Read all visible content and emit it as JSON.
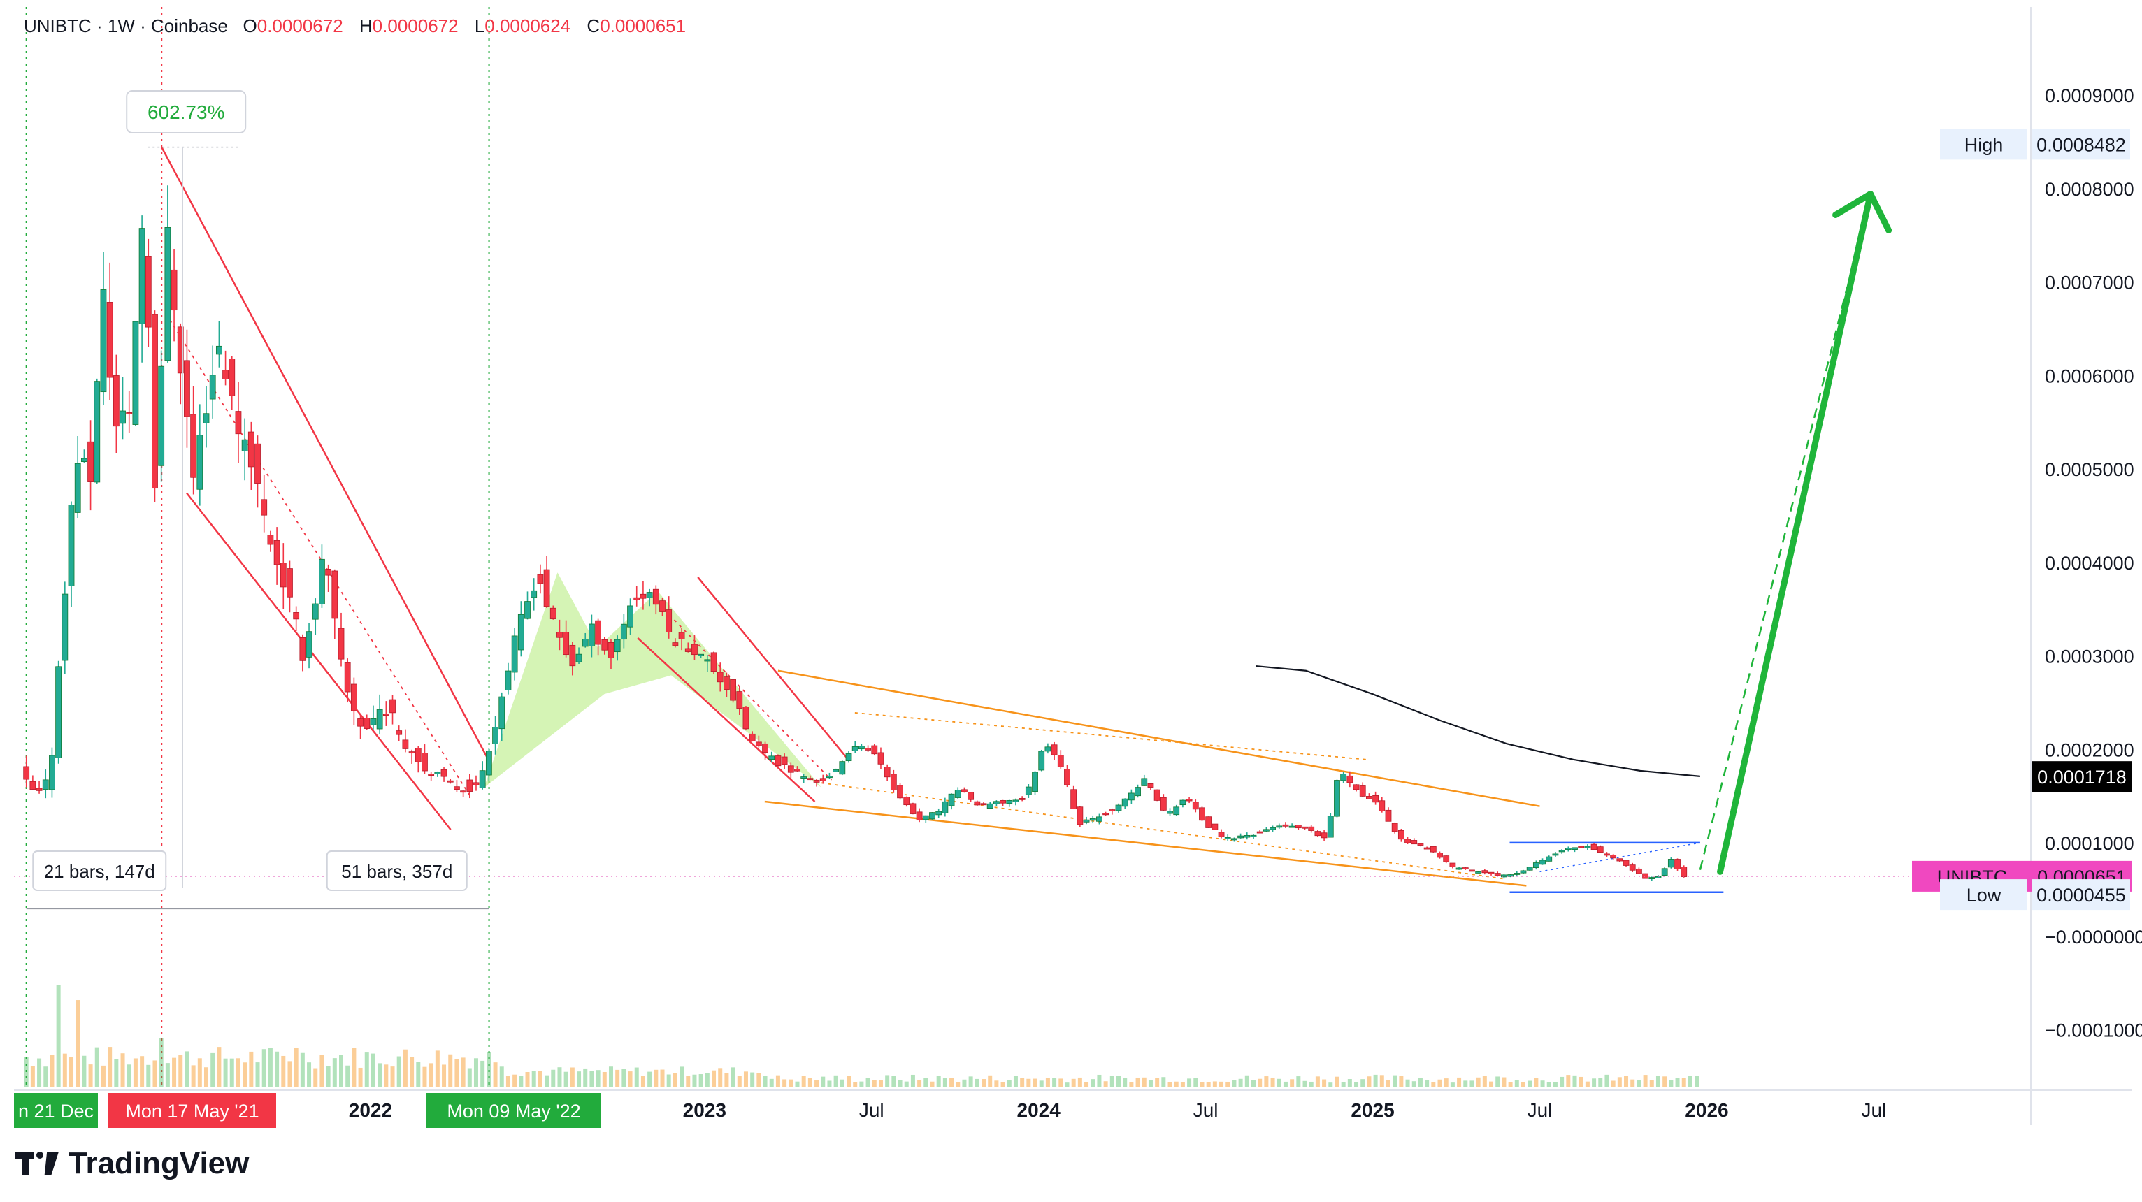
{
  "header": {
    "symbol_line": "UNIBTC · 1W · Coinbase",
    "open_label": "O",
    "open": "0.0000672",
    "high_label": "H",
    "high": "0.0000672",
    "low_label": "L",
    "low": "0.0000624",
    "close_label": "C",
    "close": "0.0000651"
  },
  "brand": {
    "name": "TradingView"
  },
  "colors": {
    "up": "#22ab94",
    "down": "#f23645",
    "channel": "#f23645",
    "wedge": "#f7931a",
    "range": "#2962ff",
    "arrow": "#1fb53a",
    "price_tag": "#f048c0",
    "ma": "#131722"
  },
  "chart_data": {
    "type": "candlestick",
    "symbol": "UNIBTC",
    "interval": "1W",
    "exchange": "Coinbase",
    "ylim": [
      -0.00016,
      0.000995
    ],
    "y_ticks": [
      "0.0009000",
      "0.0008000",
      "0.0007000",
      "0.0006000",
      "0.0005000",
      "0.0004000",
      "0.0003000",
      "0.0002000",
      "0.0001000",
      "−0.0000000",
      "−0.0001000"
    ],
    "y_tick_values": [
      0.0009,
      0.0008,
      0.0007,
      0.0006,
      0.0005,
      0.0004,
      0.0003,
      0.0002,
      0.0001,
      0,
      -0.0001
    ],
    "x_ticks": [
      {
        "label": "2022",
        "t": 2022.0,
        "bold": true
      },
      {
        "label": "2023",
        "t": 2023.0,
        "bold": true
      },
      {
        "label": "Jul",
        "t": 2023.5
      },
      {
        "label": "2024",
        "t": 2024.0,
        "bold": true
      },
      {
        "label": "Jul",
        "t": 2024.5
      },
      {
        "label": "2025",
        "t": 2025.0,
        "bold": true
      },
      {
        "label": "Jul",
        "t": 2025.5
      },
      {
        "label": "2026",
        "t": 2026.0,
        "bold": true
      },
      {
        "label": "Jul",
        "t": 2026.5
      }
    ],
    "x_tags": [
      {
        "label": "n 21 Dec",
        "t": 2020.97,
        "color": "#22ab3c"
      },
      {
        "label": "Mon 17 May '21",
        "t": 2021.375,
        "color": "#f23645"
      },
      {
        "label": "Mon 09 May '22",
        "t": 2022.355,
        "color": "#22ab3c"
      }
    ],
    "price_path": [
      {
        "t": 2020.97,
        "p": 0.000175
      },
      {
        "t": 2021.02,
        "p": 0.00015
      },
      {
        "t": 2021.06,
        "p": 0.00017
      },
      {
        "t": 2021.1,
        "p": 0.00036
      },
      {
        "t": 2021.14,
        "p": 0.00052
      },
      {
        "t": 2021.18,
        "p": 0.00049
      },
      {
        "t": 2021.22,
        "p": 0.00068
      },
      {
        "t": 2021.26,
        "p": 0.00054
      },
      {
        "t": 2021.3,
        "p": 0.00057
      },
      {
        "t": 2021.34,
        "p": 0.00079
      },
      {
        "t": 2021.375,
        "p": 0.00048
      },
      {
        "t": 2021.41,
        "p": 0.00075
      },
      {
        "t": 2021.45,
        "p": 0.00062
      },
      {
        "t": 2021.49,
        "p": 0.00049
      },
      {
        "t": 2021.53,
        "p": 0.00058
      },
      {
        "t": 2021.57,
        "p": 0.00064
      },
      {
        "t": 2021.61,
        "p": 0.00056
      },
      {
        "t": 2021.66,
        "p": 0.00052
      },
      {
        "t": 2021.7,
        "p": 0.00045
      },
      {
        "t": 2021.76,
        "p": 0.00038
      },
      {
        "t": 2021.82,
        "p": 0.0003
      },
      {
        "t": 2021.88,
        "p": 0.00041
      },
      {
        "t": 2021.94,
        "p": 0.00027
      },
      {
        "t": 2022.0,
        "p": 0.00022
      },
      {
        "t": 2022.06,
        "p": 0.00025
      },
      {
        "t": 2022.12,
        "p": 0.00021
      },
      {
        "t": 2022.2,
        "p": 0.000175
      },
      {
        "t": 2022.28,
        "p": 0.00016
      },
      {
        "t": 2022.34,
        "p": 0.00016
      },
      {
        "t": 2022.4,
        "p": 0.00024
      },
      {
        "t": 2022.46,
        "p": 0.00033
      },
      {
        "t": 2022.52,
        "p": 0.00039
      },
      {
        "t": 2022.56,
        "p": 0.00034
      },
      {
        "t": 2022.62,
        "p": 0.00029
      },
      {
        "t": 2022.68,
        "p": 0.00033
      },
      {
        "t": 2022.74,
        "p": 0.0003
      },
      {
        "t": 2022.8,
        "p": 0.00036
      },
      {
        "t": 2022.86,
        "p": 0.00037
      },
      {
        "t": 2022.92,
        "p": 0.00032
      },
      {
        "t": 2022.98,
        "p": 0.00031
      },
      {
        "t": 2023.04,
        "p": 0.00029
      },
      {
        "t": 2023.1,
        "p": 0.00026
      },
      {
        "t": 2023.16,
        "p": 0.00021
      },
      {
        "t": 2023.22,
        "p": 0.00019
      },
      {
        "t": 2023.3,
        "p": 0.000175
      },
      {
        "t": 2023.36,
        "p": 0.000165
      },
      {
        "t": 2023.42,
        "p": 0.00018
      },
      {
        "t": 2023.48,
        "p": 0.00021
      },
      {
        "t": 2023.54,
        "p": 0.00019
      },
      {
        "t": 2023.6,
        "p": 0.00015
      },
      {
        "t": 2023.66,
        "p": 0.000125
      },
      {
        "t": 2023.72,
        "p": 0.000135
      },
      {
        "t": 2023.78,
        "p": 0.00016
      },
      {
        "t": 2023.84,
        "p": 0.00014
      },
      {
        "t": 2023.92,
        "p": 0.000145
      },
      {
        "t": 2023.98,
        "p": 0.00015
      },
      {
        "t": 2024.04,
        "p": 0.00021
      },
      {
        "t": 2024.08,
        "p": 0.00019
      },
      {
        "t": 2024.14,
        "p": 0.00012
      },
      {
        "t": 2024.2,
        "p": 0.00013
      },
      {
        "t": 2024.26,
        "p": 0.00014
      },
      {
        "t": 2024.34,
        "p": 0.00017
      },
      {
        "t": 2024.4,
        "p": 0.00013
      },
      {
        "t": 2024.46,
        "p": 0.00015
      },
      {
        "t": 2024.52,
        "p": 0.00012
      },
      {
        "t": 2024.58,
        "p": 0.000105
      },
      {
        "t": 2024.66,
        "p": 0.00011
      },
      {
        "t": 2024.74,
        "p": 0.00012
      },
      {
        "t": 2024.82,
        "p": 0.000115
      },
      {
        "t": 2024.88,
        "p": 0.000105
      },
      {
        "t": 2024.92,
        "p": 0.00018
      },
      {
        "t": 2024.98,
        "p": 0.000155
      },
      {
        "t": 2025.04,
        "p": 0.00014
      },
      {
        "t": 2025.1,
        "p": 0.000105
      },
      {
        "t": 2025.18,
        "p": 9.5e-05
      },
      {
        "t": 2025.26,
        "p": 7.5e-05
      },
      {
        "t": 2025.34,
        "p": 7e-05
      },
      {
        "t": 2025.4,
        "p": 6.5e-05
      },
      {
        "t": 2025.46,
        "p": 7e-05
      },
      {
        "t": 2025.52,
        "p": 8.2e-05
      },
      {
        "t": 2025.6,
        "p": 9.5e-05
      },
      {
        "t": 2025.66,
        "p": 9.8e-05
      },
      {
        "t": 2025.72,
        "p": 8.8e-05
      },
      {
        "t": 2025.78,
        "p": 7.6e-05
      },
      {
        "t": 2025.84,
        "p": 6.2e-05
      },
      {
        "t": 2025.88,
        "p": 6.6e-05
      },
      {
        "t": 2025.91,
        "p": 8.4e-05
      },
      {
        "t": 2025.95,
        "p": 6.5e-05
      }
    ],
    "moving_average": [
      {
        "t": 2024.65,
        "p": 0.00029
      },
      {
        "t": 2024.8,
        "p": 0.000285
      },
      {
        "t": 2025.0,
        "p": 0.00026
      },
      {
        "t": 2025.2,
        "p": 0.000232
      },
      {
        "t": 2025.4,
        "p": 0.000207
      },
      {
        "t": 2025.6,
        "p": 0.00019
      },
      {
        "t": 2025.8,
        "p": 0.000178
      },
      {
        "t": 2025.98,
        "p": 0.000172
      }
    ],
    "volume": {
      "ylim": [
        0,
        120
      ],
      "start": 2020.97,
      "end": 2025.97,
      "spikes": [
        {
          "t": 2021.07,
          "v": 100
        },
        {
          "t": 2021.13,
          "v": 85
        },
        {
          "t": 2021.375,
          "v": 48
        },
        {
          "t": 2021.78,
          "v": 38
        }
      ]
    },
    "annotations": {
      "pct_label": "602.73%",
      "range_1": "21 bars, 147d",
      "range_2": "51 bars, 357d",
      "high_label": "High",
      "high_value": "0.0008482",
      "low_label": "Low",
      "low_value": "0.0000455",
      "ma_value": "0.0001718",
      "price_label": "UNIBTC",
      "price_value": "0.0000651"
    }
  }
}
